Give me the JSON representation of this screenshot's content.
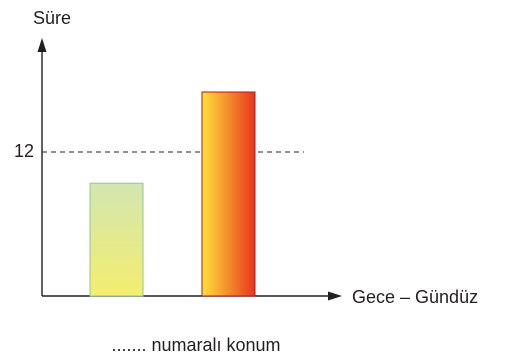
{
  "chart_data": {
    "type": "bar",
    "xlabel": "Gece – Gündüz",
    "ylabel": "Süre",
    "reference_line": {
      "value": 12,
      "label": "12",
      "style": "dashed"
    },
    "bars": [
      {
        "value": 9.4,
        "fill_colors": [
          "#f3ee6e",
          "#d2e6b0"
        ],
        "gradient": "bottom-to-top"
      },
      {
        "value": 17.0,
        "fill_colors": [
          "#ffe23a",
          "#e8351e"
        ],
        "gradient": "left-to-right"
      }
    ],
    "ylim": [
      0,
      21.5
    ],
    "grid": false,
    "legend": "none",
    "caption": "....... numaralı konum"
  }
}
